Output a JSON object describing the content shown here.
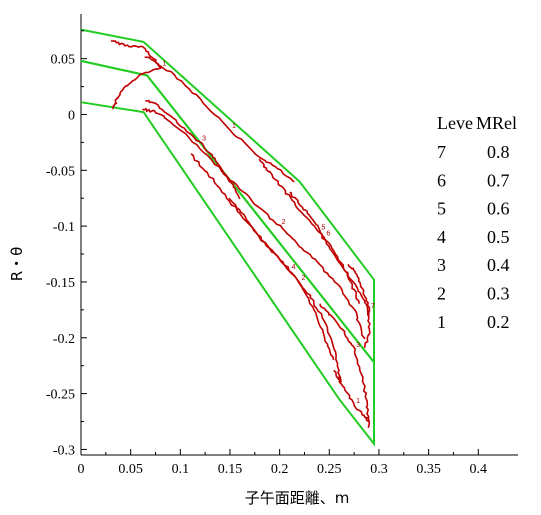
{
  "chart_data": {
    "type": "contour",
    "xlabel": "子午面距離、m",
    "ylabel": "R・θ",
    "xlim": [
      0,
      0.44
    ],
    "ylim": [
      -0.305,
      0.09
    ],
    "x_ticks": [
      "0",
      "0.05",
      "0.1",
      "0.15",
      "0.2",
      "0.25",
      "0.3",
      "0.35",
      "0.4"
    ],
    "x_tick_values": [
      0,
      0.05,
      0.1,
      0.15,
      0.2,
      0.25,
      0.3,
      0.35,
      0.4
    ],
    "y_ticks": [
      "0.05",
      "0",
      "-0.05",
      "-0.1",
      "-0.15",
      "-0.2",
      "-0.25",
      "-0.3"
    ],
    "y_tick_values": [
      0.05,
      0,
      -0.05,
      -0.1,
      -0.15,
      -0.2,
      -0.25,
      -0.3
    ],
    "legend": {
      "header_level": "Leve",
      "header_value": "MRel",
      "placement": "right",
      "entries": [
        {
          "level": "7",
          "value": "0.8"
        },
        {
          "level": "6",
          "value": "0.7"
        },
        {
          "level": "5",
          "value": "0.6"
        },
        {
          "level": "4",
          "value": "0.5"
        },
        {
          "level": "3",
          "value": "0.4"
        },
        {
          "level": "2",
          "value": "0.3"
        },
        {
          "level": "1",
          "value": "0.2"
        }
      ]
    },
    "blade_outlines": [
      {
        "name": "upper",
        "color": "#22cc22",
        "points": [
          [
            0,
            0.076
          ],
          [
            0.063,
            0.065
          ],
          [
            0.22,
            -0.06
          ],
          [
            0.295,
            -0.148
          ],
          [
            0.295,
            -0.222
          ],
          [
            0.0665,
            0.035
          ],
          [
            0,
            0.048
          ]
        ]
      },
      {
        "name": "lower",
        "color": "#22cc22",
        "points": [
          [
            0,
            0.011
          ],
          [
            0.063,
            0.002
          ],
          [
            0.26,
            -0.255
          ],
          [
            0.295,
            -0.295
          ],
          [
            0.295,
            -0.222
          ],
          [
            0.0665,
            0.035
          ],
          [
            0,
            0.048
          ]
        ]
      }
    ],
    "contour_color": "#c00000",
    "contours": [
      {
        "level": "1",
        "points": [
          [
            0.03,
            0.066
          ],
          [
            0.045,
            0.062
          ],
          [
            0.062,
            0.06
          ],
          [
            0.075,
            0.048
          ],
          [
            0.08,
            0.042
          ],
          [
            0.06,
            0.036
          ],
          [
            0.045,
            0.025
          ],
          [
            0.035,
            0.012
          ],
          [
            0.033,
            0.006
          ]
        ]
      },
      {
        "level": "1",
        "points": [
          [
            0.065,
            0.052
          ],
          [
            0.09,
            0.038
          ],
          [
            0.12,
            0.014
          ],
          [
            0.15,
            -0.014
          ],
          [
            0.18,
            -0.038
          ],
          [
            0.2,
            -0.05
          ],
          [
            0.215,
            -0.06
          ]
        ]
      },
      {
        "level": "2",
        "points": [
          [
            0.062,
            0.005
          ],
          [
            0.075,
            0.002
          ],
          [
            0.09,
            -0.006
          ],
          [
            0.12,
            -0.03
          ],
          [
            0.15,
            -0.058
          ],
          [
            0.175,
            -0.08
          ],
          [
            0.2,
            -0.1
          ],
          [
            0.22,
            -0.118
          ],
          [
            0.24,
            -0.135
          ],
          [
            0.26,
            -0.155
          ],
          [
            0.275,
            -0.175
          ],
          [
            0.285,
            -0.2
          ]
        ]
      },
      {
        "level": "3",
        "points": [
          [
            0.065,
            0.012
          ],
          [
            0.075,
            0.01
          ],
          [
            0.095,
            -0.005
          ],
          [
            0.12,
            -0.025
          ],
          [
            0.135,
            -0.04
          ],
          [
            0.15,
            -0.06
          ],
          [
            0.16,
            -0.075
          ]
        ]
      },
      {
        "level": "4",
        "points": [
          [
            0.11,
            -0.035
          ],
          [
            0.13,
            -0.055
          ],
          [
            0.15,
            -0.078
          ],
          [
            0.17,
            -0.1
          ],
          [
            0.19,
            -0.12
          ],
          [
            0.21,
            -0.14
          ],
          [
            0.23,
            -0.162
          ],
          [
            0.245,
            -0.185
          ],
          [
            0.255,
            -0.21
          ],
          [
            0.26,
            -0.235
          ],
          [
            0.262,
            -0.24
          ]
        ]
      },
      {
        "level": "2",
        "points": [
          [
            0.15,
            -0.075
          ],
          [
            0.165,
            -0.092
          ],
          [
            0.18,
            -0.11
          ],
          [
            0.2,
            -0.13
          ],
          [
            0.22,
            -0.15
          ],
          [
            0.235,
            -0.175
          ],
          [
            0.245,
            -0.2
          ],
          [
            0.255,
            -0.22
          ]
        ]
      },
      {
        "level": "5",
        "points": [
          [
            0.18,
            -0.04
          ],
          [
            0.19,
            -0.052
          ],
          [
            0.205,
            -0.068
          ],
          [
            0.22,
            -0.085
          ],
          [
            0.24,
            -0.105
          ],
          [
            0.255,
            -0.125
          ],
          [
            0.27,
            -0.145
          ],
          [
            0.285,
            -0.165
          ],
          [
            0.29,
            -0.18
          ]
        ]
      },
      {
        "level": "6",
        "points": [
          [
            0.21,
            -0.07
          ],
          [
            0.22,
            -0.08
          ],
          [
            0.23,
            -0.09
          ],
          [
            0.245,
            -0.11
          ],
          [
            0.26,
            -0.13
          ],
          [
            0.272,
            -0.15
          ],
          [
            0.28,
            -0.17
          ]
        ]
      },
      {
        "level": "3",
        "points": [
          [
            0.24,
            -0.17
          ],
          [
            0.252,
            -0.18
          ],
          [
            0.265,
            -0.195
          ],
          [
            0.275,
            -0.21
          ],
          [
            0.283,
            -0.235
          ],
          [
            0.288,
            -0.26
          ],
          [
            0.29,
            -0.28
          ]
        ]
      },
      {
        "level": "7",
        "points": [
          [
            0.27,
            -0.135
          ],
          [
            0.278,
            -0.145
          ],
          [
            0.285,
            -0.16
          ],
          [
            0.29,
            -0.175
          ],
          [
            0.29,
            -0.195
          ],
          [
            0.285,
            -0.21
          ]
        ]
      },
      {
        "level": "1",
        "points": [
          [
            0.255,
            -0.23
          ],
          [
            0.265,
            -0.245
          ],
          [
            0.275,
            -0.26
          ],
          [
            0.285,
            -0.27
          ],
          [
            0.29,
            -0.275
          ]
        ]
      }
    ]
  }
}
